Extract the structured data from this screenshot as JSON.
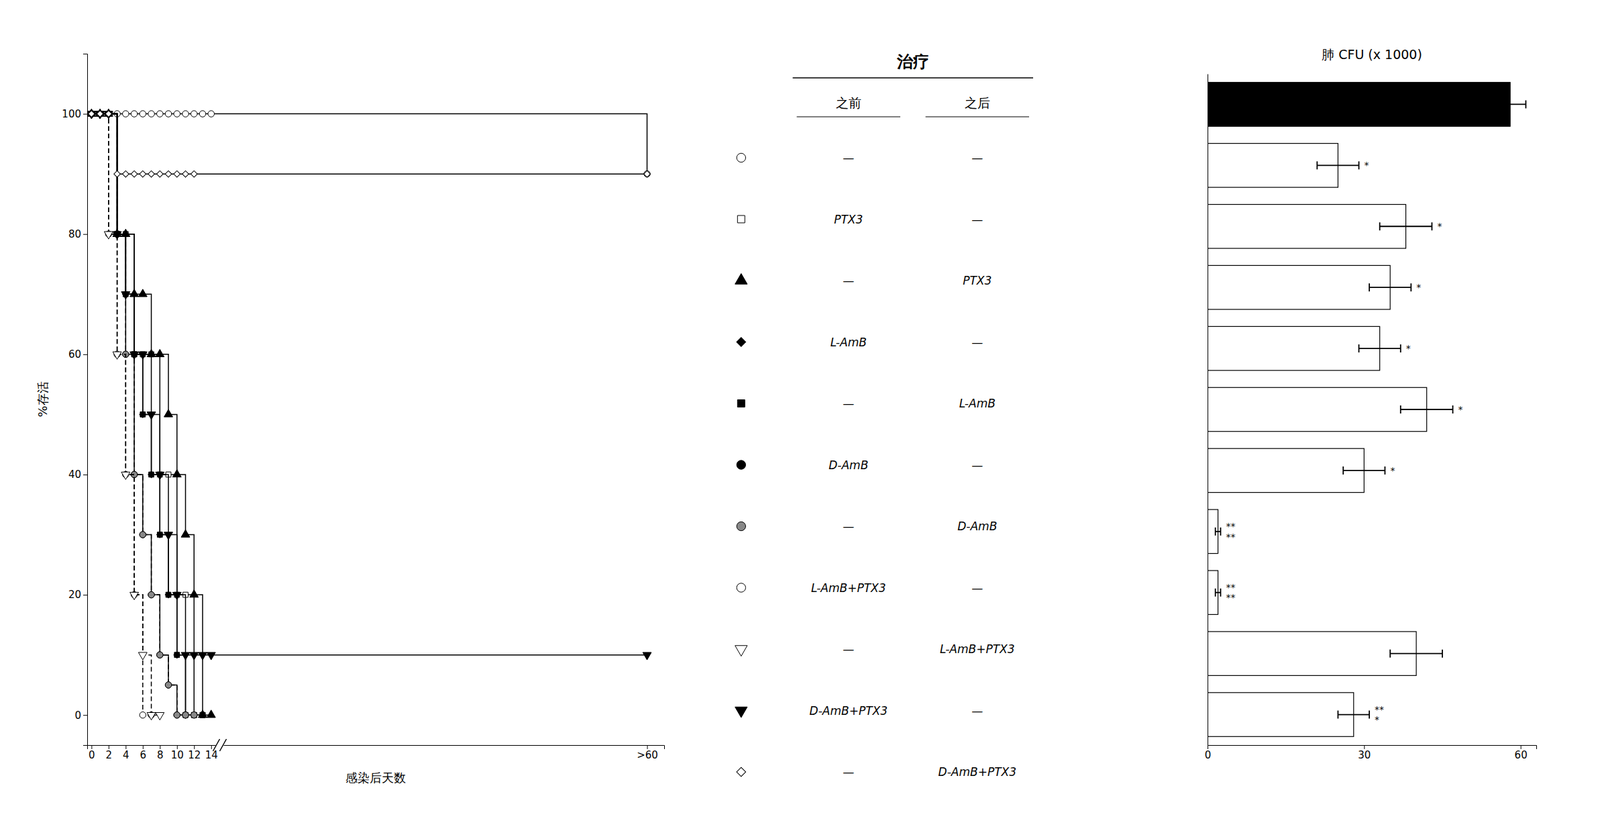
{
  "chart_data": [
    {
      "type": "line",
      "x_label": "感染后天数",
      "y_label": "%存活",
      "xlim": [
        -0.5,
        67
      ],
      "ylim": [
        -5,
        110
      ],
      "xticks": [
        0,
        2,
        4,
        6,
        8,
        10,
        12,
        14,
        {
          "value": 65,
          "label": ">60"
        }
      ],
      "yticks": [
        0,
        20,
        40,
        60,
        80,
        100
      ],
      "series": [
        {
          "x": [
            0,
            1,
            2,
            3,
            4,
            5,
            6,
            7,
            8,
            9,
            10,
            11,
            12,
            13,
            14,
            65
          ],
          "values": [
            100,
            100,
            100,
            100,
            100,
            100,
            100,
            100,
            100,
            100,
            100,
            100,
            100,
            100,
            100,
            90
          ],
          "marker": "circle",
          "color": "#ffffff",
          "line_style": "solid"
        },
        {
          "x": [
            0,
            1,
            2,
            3,
            4,
            5,
            6,
            7,
            8,
            9,
            10,
            11,
            12,
            13
          ],
          "values": [
            100,
            100,
            100,
            80,
            80,
            60,
            60,
            60,
            40,
            40,
            20,
            20,
            0,
            0
          ],
          "marker": "square",
          "color": "#ffffff",
          "line_style": "solid"
        },
        {
          "x": [
            0,
            1,
            2,
            3,
            4,
            5,
            6,
            7,
            8,
            9,
            10,
            11,
            12,
            13,
            14
          ],
          "values": [
            100,
            100,
            100,
            80,
            80,
            70,
            70,
            60,
            60,
            50,
            40,
            30,
            20,
            0,
            0
          ],
          "marker": "triangle-up",
          "color": "#000000",
          "line_style": "solid"
        },
        {
          "x": [
            0,
            1,
            2,
            3,
            4,
            5,
            6,
            7,
            8,
            9,
            10,
            11,
            12
          ],
          "values": [
            100,
            100,
            100,
            80,
            70,
            60,
            50,
            40,
            30,
            20,
            10,
            0,
            0
          ],
          "marker": "diamond",
          "color": "#000000",
          "line_style": "solid"
        },
        {
          "x": [
            0,
            1,
            2,
            3,
            4,
            5,
            6,
            7,
            8,
            9,
            10,
            11,
            12,
            13
          ],
          "values": [
            100,
            100,
            100,
            80,
            70,
            60,
            50,
            40,
            30,
            20,
            10,
            0,
            0,
            0
          ],
          "marker": "square",
          "color": "#000000",
          "line_style": "solid"
        },
        {
          "x": [
            0,
            1,
            2,
            3,
            4,
            5,
            6,
            7,
            8,
            9,
            10,
            11
          ],
          "values": [
            100,
            100,
            100,
            80,
            60,
            40,
            30,
            20,
            10,
            5,
            0,
            0
          ],
          "marker": "circle",
          "color": "#000000",
          "line_style": "solid"
        },
        {
          "x": [
            0,
            1,
            2,
            3,
            4,
            5,
            6,
            7,
            8,
            9,
            10,
            11,
            12
          ],
          "values": [
            100,
            100,
            100,
            80,
            60,
            40,
            30,
            20,
            10,
            5,
            0,
            0,
            0
          ],
          "marker": "circle",
          "color": "#888888",
          "line_style": "dashed"
        },
        {
          "x": [
            0,
            1,
            2,
            3,
            4,
            5,
            6,
            7
          ],
          "values": [
            100,
            100,
            80,
            60,
            40,
            20,
            0,
            0
          ],
          "marker": "circle",
          "color": "#ffffff",
          "line_style": "dashed"
        },
        {
          "x": [
            0,
            1,
            2,
            3,
            4,
            5,
            6,
            7,
            8
          ],
          "values": [
            100,
            100,
            80,
            60,
            40,
            20,
            10,
            0,
            0
          ],
          "marker": "triangle-down",
          "color": "#ffffff",
          "line_style": "dashed"
        },
        {
          "x": [
            0,
            1,
            2,
            3,
            4,
            5,
            6,
            7,
            8,
            9,
            10,
            11,
            12,
            13,
            14,
            65
          ],
          "values": [
            100,
            100,
            100,
            80,
            70,
            60,
            60,
            50,
            40,
            30,
            20,
            10,
            10,
            10,
            10,
            10
          ],
          "marker": "triangle-down",
          "color": "#000000",
          "line_style": "solid"
        },
        {
          "x": [
            0,
            1,
            2,
            3,
            4,
            5,
            6,
            7,
            8,
            9,
            10,
            11,
            12,
            65
          ],
          "values": [
            100,
            100,
            100,
            90,
            90,
            90,
            90,
            90,
            90,
            90,
            90,
            90,
            90,
            90
          ],
          "marker": "diamond",
          "color": "#ffffff",
          "line_style": "solid"
        }
      ]
    },
    {
      "type": "table",
      "title": "治疗",
      "columns": [
        "之前",
        "之后"
      ],
      "rows": [
        {
          "marker": "circle",
          "color": "#ffffff",
          "cells": [
            "—",
            "—"
          ]
        },
        {
          "marker": "square",
          "color": "#ffffff",
          "cells": [
            "PTX3",
            "—"
          ]
        },
        {
          "marker": "triangle-up",
          "color": "#000000",
          "cells": [
            "—",
            "PTX3"
          ]
        },
        {
          "marker": "diamond",
          "color": "#000000",
          "cells": [
            "L-AmB",
            "—"
          ]
        },
        {
          "marker": "square",
          "color": "#000000",
          "cells": [
            "—",
            "L-AmB"
          ]
        },
        {
          "marker": "circle",
          "color": "#000000",
          "cells": [
            "D-AmB",
            "—"
          ]
        },
        {
          "marker": "circle",
          "color": "#888888",
          "cells": [
            "—",
            "D-AmB"
          ]
        },
        {
          "marker": "circle",
          "color": "#ffffff",
          "cells": [
            "L-AmB+PTX3",
            "—"
          ]
        },
        {
          "marker": "triangle-down",
          "color": "#ffffff",
          "cells": [
            "—",
            "L-AmB+PTX3"
          ]
        },
        {
          "marker": "triangle-down",
          "color": "#000000",
          "cells": [
            "D-AmB+PTX3",
            "—"
          ]
        },
        {
          "marker": "diamond",
          "color": "#ffffff",
          "cells": [
            "—",
            "D-AmB+PTX3"
          ]
        }
      ]
    },
    {
      "type": "bar",
      "orientation": "horizontal",
      "title": "肺 CFU (x 1000)",
      "categories": [
        null,
        null,
        null,
        null,
        null,
        null,
        null,
        null,
        null,
        null,
        null
      ],
      "values": [
        58,
        25,
        38,
        35,
        33,
        42,
        30,
        2,
        2,
        40,
        28
      ],
      "errors": [
        3,
        4,
        5,
        4,
        4,
        5,
        4,
        0.5,
        0.5,
        5,
        3
      ],
      "annotations": [
        null,
        "*",
        "*",
        "*",
        "*",
        "*",
        "*",
        "**\n**",
        "**\n**",
        null,
        "**\n*"
      ],
      "colors": [
        "#000000",
        "#ffffff",
        "#ffffff",
        "#ffffff",
        "#ffffff",
        "#ffffff",
        "#ffffff",
        "#ffffff",
        "#ffffff",
        "#ffffff",
        "#ffffff"
      ],
      "xlim": [
        0,
        63
      ],
      "xticks": [
        0,
        30,
        60
      ],
      "tick_labels": "x"
    }
  ]
}
